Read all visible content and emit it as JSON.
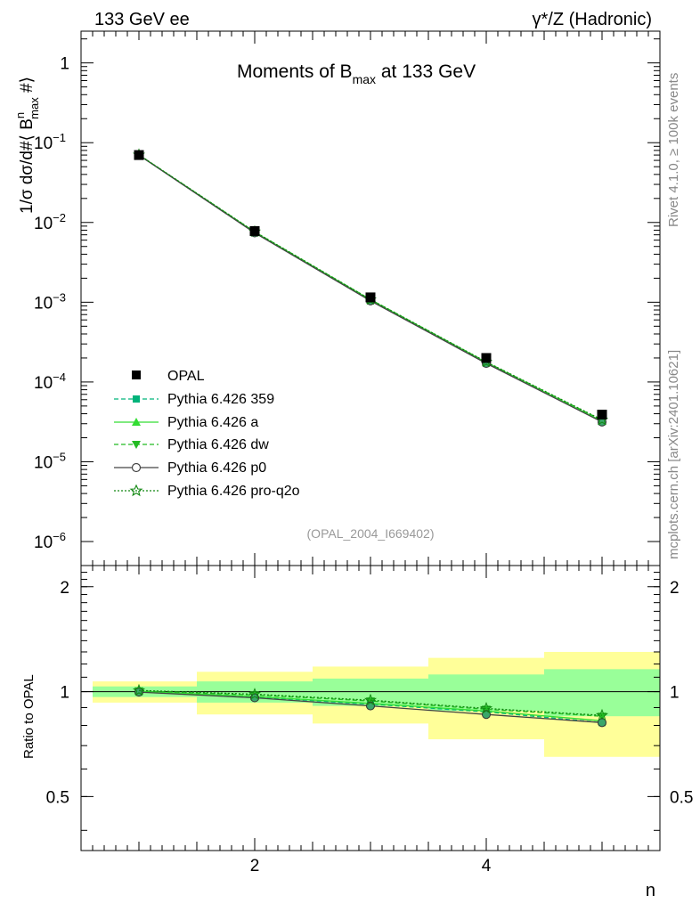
{
  "header": {
    "left": "133 GeV ee",
    "right": "γ*/Z (Hadronic)"
  },
  "side_text": {
    "rivet": "Rivet 4.1.0, ≥ 100k events",
    "mcplots": "mcplots.cern.ch [arXiv:2401.10621]"
  },
  "chart_data": [
    {
      "type": "line",
      "title": "Moments of B_max at 133 GeV",
      "title_main": "Moments of B",
      "title_sub": "max",
      "title_tail": " at 133 GeV",
      "ylabel": "1/σ  dσ/d#⟨ B^n_max #⟩",
      "ylabel_parts": {
        "pre": "1/σ  dσ/d#⟨ B",
        "sup": "n",
        "sub": "max",
        "post": " #⟩"
      },
      "xlabel": "n",
      "yscale": "log",
      "ylim": [
        5e-07,
        2.5
      ],
      "xlim": [
        0.5,
        5.5
      ],
      "yticks": [
        {
          "v": 1,
          "base": "1",
          "exp": ""
        },
        {
          "v": 0.1,
          "base": "10",
          "exp": "−1"
        },
        {
          "v": 0.01,
          "base": "10",
          "exp": "−2"
        },
        {
          "v": 0.001,
          "base": "10",
          "exp": "−3"
        },
        {
          "v": 0.0001,
          "base": "10",
          "exp": "−4"
        },
        {
          "v": 1e-05,
          "base": "10",
          "exp": "−5"
        },
        {
          "v": 1e-06,
          "base": "10",
          "exp": "−6"
        }
      ],
      "x": [
        1,
        2,
        3,
        4,
        5
      ],
      "annotation": "(OPAL_2004_I669402)",
      "data": {
        "name": "OPAL",
        "values": [
          0.07,
          0.0078,
          0.00115,
          0.0002,
          3.9e-05
        ]
      },
      "series": [
        {
          "name": "Pythia 6.426 359",
          "color": "#00b37a",
          "dash": "5,3",
          "marker": "square",
          "values": [
            0.07,
            0.00752,
            0.00106,
            0.000175,
            3.18e-05
          ]
        },
        {
          "name": "Pythia 6.426 a",
          "color": "#33dd33",
          "dash": "",
          "marker": "triangle-up",
          "values": [
            0.0702,
            0.00755,
            0.00107,
            0.000176,
            3.22e-05
          ]
        },
        {
          "name": "Pythia 6.426 dw",
          "color": "#22bb22",
          "dash": "5,3",
          "marker": "triangle-down",
          "values": [
            0.0703,
            0.00763,
            0.00108,
            0.000178,
            3.32e-05
          ]
        },
        {
          "name": "Pythia 6.426 p0",
          "color": "#444444",
          "dash": "",
          "marker": "circle",
          "values": [
            0.0698,
            0.0074,
            0.00104,
            0.000171,
            3.15e-05
          ]
        },
        {
          "name": "Pythia 6.426 pro-q2o",
          "color": "#118811",
          "dash": "2,2",
          "marker": "star",
          "values": [
            0.0705,
            0.00765,
            0.00108,
            0.000179,
            3.35e-05
          ]
        }
      ]
    },
    {
      "type": "line",
      "title": "",
      "ylabel": "Ratio to OPAL",
      "xlabel": "n",
      "ylim": [
        0.35,
        2.3
      ],
      "xlim": [
        0.5,
        5.5
      ],
      "yticks": [
        0.5,
        1,
        2
      ],
      "yticklabels": [
        "0.5",
        "1",
        "2"
      ],
      "xticks": [
        2,
        4
      ],
      "xticklabels": [
        "2",
        "4"
      ],
      "bands": [
        {
          "xlo": 0.6,
          "xhi": 1.5,
          "green": [
            0.965,
            1.035
          ],
          "yellow": [
            0.93,
            1.07
          ]
        },
        {
          "xlo": 1.5,
          "xhi": 2.5,
          "green": [
            0.93,
            1.07
          ],
          "yellow": [
            0.86,
            1.14
          ]
        },
        {
          "xlo": 2.5,
          "xhi": 3.5,
          "green": [
            0.91,
            1.09
          ],
          "yellow": [
            0.81,
            1.18
          ]
        },
        {
          "xlo": 3.5,
          "xhi": 4.5,
          "green": [
            0.88,
            1.12
          ],
          "yellow": [
            0.73,
            1.25
          ]
        },
        {
          "xlo": 4.5,
          "xhi": 5.5,
          "green": [
            0.85,
            1.16
          ],
          "yellow": [
            0.65,
            1.3
          ]
        }
      ],
      "series": [
        {
          "name": "Pythia 6.426 359",
          "values": [
            1.0,
            0.965,
            0.92,
            0.875,
            0.815
          ]
        },
        {
          "name": "Pythia 6.426 a",
          "values": [
            1.003,
            0.968,
            0.925,
            0.88,
            0.825
          ]
        },
        {
          "name": "Pythia 6.426 dw",
          "values": [
            1.005,
            0.978,
            0.94,
            0.89,
            0.85
          ]
        },
        {
          "name": "Pythia 6.426 p0",
          "values": [
            0.997,
            0.96,
            0.91,
            0.86,
            0.815
          ]
        },
        {
          "name": "Pythia 6.426 pro-q2o",
          "values": [
            1.008,
            0.983,
            0.945,
            0.895,
            0.855
          ]
        }
      ]
    }
  ]
}
